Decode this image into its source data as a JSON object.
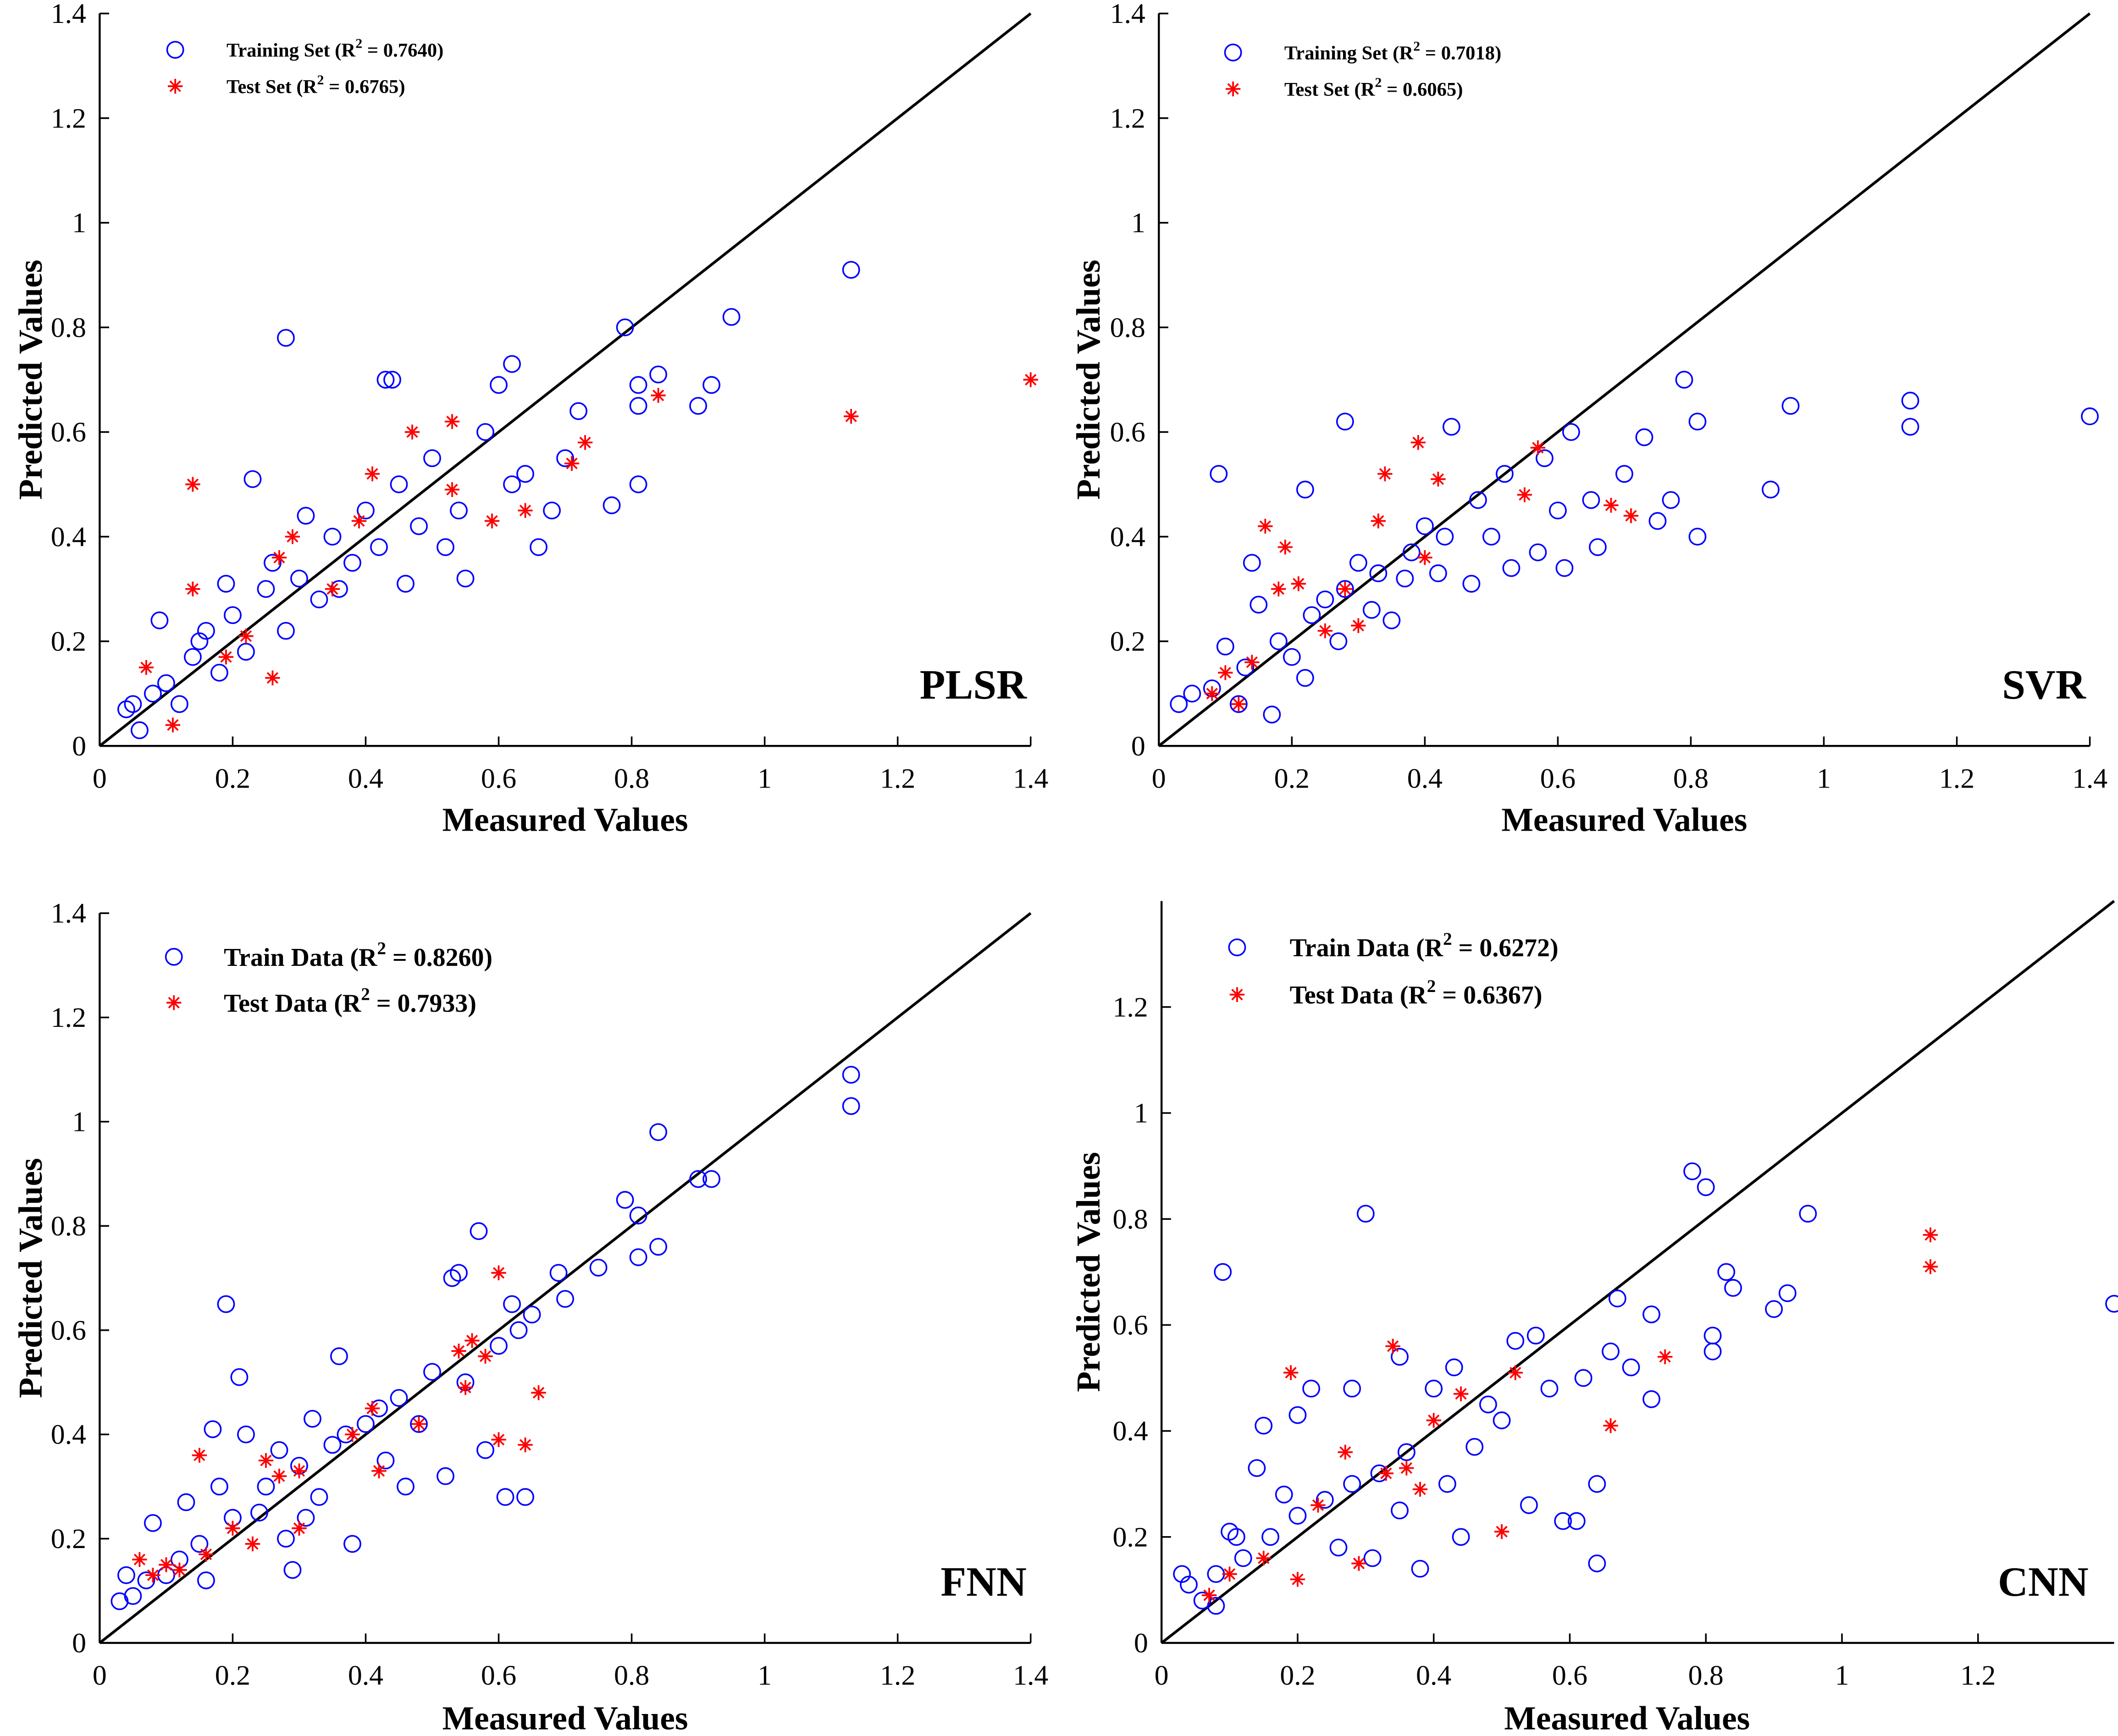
{
  "chart_data": [
    {
      "type": "scatter",
      "model": "PLSR",
      "xlabel": "Measured Values",
      "ylabel": "Predicted Values",
      "xlim": [
        0,
        1.4
      ],
      "ylim": [
        0,
        1.4
      ],
      "xticks": [
        "0",
        "0.2",
        "0.4",
        "0.6",
        "0.8",
        "1",
        "1.2",
        "1.4"
      ],
      "yticks": [
        "0",
        "0.2",
        "0.4",
        "0.6",
        "0.8",
        "1",
        "1.2",
        "1.4"
      ],
      "legend": {
        "placement": "top-left",
        "train": {
          "label": "Training Set (R",
          "sup": "2",
          "rest": " = 0.7640)"
        },
        "test": {
          "label": "Test Set (R",
          "sup": "2",
          "rest": " = 0.6765)"
        }
      },
      "reference_line": "y = x",
      "train": [
        [
          1.13,
          0.91
        ],
        [
          0.95,
          0.82
        ],
        [
          0.79,
          0.8
        ],
        [
          0.28,
          0.78
        ],
        [
          0.84,
          0.71
        ],
        [
          0.62,
          0.73
        ],
        [
          0.43,
          0.7
        ],
        [
          0.44,
          0.7
        ],
        [
          0.92,
          0.69
        ],
        [
          0.9,
          0.65
        ],
        [
          0.81,
          0.65
        ],
        [
          0.81,
          0.69
        ],
        [
          0.72,
          0.64
        ],
        [
          0.6,
          0.69
        ],
        [
          0.81,
          0.5
        ],
        [
          0.77,
          0.46
        ],
        [
          0.66,
          0.38
        ],
        [
          0.55,
          0.32
        ],
        [
          0.23,
          0.51
        ],
        [
          0.58,
          0.6
        ],
        [
          0.5,
          0.55
        ],
        [
          0.45,
          0.5
        ],
        [
          0.4,
          0.45
        ],
        [
          0.35,
          0.4
        ],
        [
          0.3,
          0.32
        ],
        [
          0.25,
          0.3
        ],
        [
          0.2,
          0.25
        ],
        [
          0.15,
          0.2
        ],
        [
          0.1,
          0.12
        ],
        [
          0.05,
          0.08
        ],
        [
          0.04,
          0.07
        ],
        [
          0.06,
          0.03
        ],
        [
          0.09,
          0.24
        ],
        [
          0.18,
          0.14
        ],
        [
          0.22,
          0.18
        ],
        [
          0.28,
          0.22
        ],
        [
          0.33,
          0.28
        ],
        [
          0.38,
          0.35
        ],
        [
          0.42,
          0.38
        ],
        [
          0.48,
          0.42
        ],
        [
          0.52,
          0.38
        ],
        [
          0.62,
          0.5
        ],
        [
          0.68,
          0.45
        ],
        [
          0.7,
          0.55
        ],
        [
          0.12,
          0.08
        ],
        [
          0.16,
          0.22
        ],
        [
          0.26,
          0.35
        ],
        [
          0.31,
          0.44
        ],
        [
          0.36,
          0.3
        ],
        [
          0.46,
          0.31
        ],
        [
          0.54,
          0.45
        ],
        [
          0.64,
          0.52
        ],
        [
          0.19,
          0.31
        ],
        [
          0.14,
          0.17
        ],
        [
          0.08,
          0.1
        ]
      ],
      "test": [
        [
          1.4,
          0.7
        ],
        [
          1.13,
          0.63
        ],
        [
          0.84,
          0.67
        ],
        [
          0.73,
          0.58
        ],
        [
          0.71,
          0.54
        ],
        [
          0.53,
          0.62
        ],
        [
          0.47,
          0.6
        ],
        [
          0.14,
          0.5
        ],
        [
          0.41,
          0.52
        ],
        [
          0.59,
          0.43
        ],
        [
          0.64,
          0.45
        ],
        [
          0.29,
          0.4
        ],
        [
          0.14,
          0.3
        ],
        [
          0.27,
          0.36
        ],
        [
          0.35,
          0.3
        ],
        [
          0.22,
          0.21
        ],
        [
          0.26,
          0.13
        ],
        [
          0.11,
          0.04
        ],
        [
          0.07,
          0.15
        ],
        [
          0.19,
          0.17
        ],
        [
          0.53,
          0.49
        ],
        [
          0.39,
          0.43
        ]
      ]
    },
    {
      "type": "scatter",
      "model": "SVR",
      "xlabel": "Measured Values",
      "ylabel": "Predicted Values",
      "xlim": [
        0,
        1.4
      ],
      "ylim": [
        0,
        1.4
      ],
      "xticks": [
        "0",
        "0.2",
        "0.4",
        "0.6",
        "0.8",
        "1",
        "1.2",
        "1.4"
      ],
      "yticks": [
        "0",
        "0.2",
        "0.4",
        "0.6",
        "0.8",
        "1",
        "1.2",
        "1.4"
      ],
      "legend": {
        "placement": "top-left",
        "train": {
          "label": "Training Set (R",
          "sup": "2",
          "rest": " = 0.7018)"
        },
        "test": {
          "label": "Test Set (R",
          "sup": "2",
          "rest": " = 0.6065)"
        }
      },
      "reference_line": "y = x",
      "train": [
        [
          1.4,
          0.63
        ],
        [
          1.13,
          0.66
        ],
        [
          1.13,
          0.61
        ],
        [
          0.95,
          0.65
        ],
        [
          0.92,
          0.49
        ],
        [
          0.81,
          0.62
        ],
        [
          0.81,
          0.4
        ],
        [
          0.79,
          0.7
        ],
        [
          0.73,
          0.59
        ],
        [
          0.28,
          0.62
        ],
        [
          0.44,
          0.61
        ],
        [
          0.09,
          0.52
        ],
        [
          0.22,
          0.49
        ],
        [
          0.62,
          0.6
        ],
        [
          0.58,
          0.55
        ],
        [
          0.52,
          0.52
        ],
        [
          0.48,
          0.47
        ],
        [
          0.43,
          0.4
        ],
        [
          0.38,
          0.37
        ],
        [
          0.33,
          0.33
        ],
        [
          0.28,
          0.3
        ],
        [
          0.23,
          0.25
        ],
        [
          0.18,
          0.2
        ],
        [
          0.13,
          0.15
        ],
        [
          0.08,
          0.11
        ],
        [
          0.03,
          0.08
        ],
        [
          0.05,
          0.1
        ],
        [
          0.12,
          0.08
        ],
        [
          0.17,
          0.06
        ],
        [
          0.22,
          0.13
        ],
        [
          0.27,
          0.2
        ],
        [
          0.32,
          0.26
        ],
        [
          0.37,
          0.32
        ],
        [
          0.42,
          0.33
        ],
        [
          0.47,
          0.31
        ],
        [
          0.53,
          0.34
        ],
        [
          0.57,
          0.37
        ],
        [
          0.61,
          0.34
        ],
        [
          0.66,
          0.38
        ],
        [
          0.7,
          0.52
        ],
        [
          0.75,
          0.43
        ],
        [
          0.77,
          0.47
        ],
        [
          0.65,
          0.47
        ],
        [
          0.6,
          0.45
        ],
        [
          0.5,
          0.4
        ],
        [
          0.4,
          0.42
        ],
        [
          0.35,
          0.24
        ],
        [
          0.3,
          0.35
        ],
        [
          0.25,
          0.28
        ],
        [
          0.2,
          0.17
        ],
        [
          0.15,
          0.27
        ],
        [
          0.1,
          0.19
        ],
        [
          0.14,
          0.35
        ]
      ],
      "test": [
        [
          0.57,
          0.57
        ],
        [
          0.39,
          0.58
        ],
        [
          0.42,
          0.51
        ],
        [
          0.34,
          0.52
        ],
        [
          0.16,
          0.42
        ],
        [
          0.19,
          0.38
        ],
        [
          0.71,
          0.44
        ],
        [
          0.68,
          0.46
        ],
        [
          0.55,
          0.48
        ],
        [
          0.33,
          0.43
        ],
        [
          0.4,
          0.36
        ],
        [
          0.28,
          0.3
        ],
        [
          0.25,
          0.22
        ],
        [
          0.3,
          0.23
        ],
        [
          0.21,
          0.31
        ],
        [
          0.12,
          0.08
        ],
        [
          0.1,
          0.14
        ],
        [
          0.08,
          0.1
        ],
        [
          0.14,
          0.16
        ],
        [
          0.18,
          0.3
        ]
      ]
    },
    {
      "type": "scatter",
      "model": "FNN",
      "xlabel": "Measured Values",
      "ylabel": "Predicted Values",
      "xlim": [
        0,
        1.4
      ],
      "ylim": [
        0,
        1.4
      ],
      "xticks": [
        "0",
        "0.2",
        "0.4",
        "0.6",
        "0.8",
        "1",
        "1.2",
        "1.4"
      ],
      "yticks": [
        "0",
        "0.2",
        "0.4",
        "0.6",
        "0.8",
        "1",
        "1.2",
        "1.4"
      ],
      "legend": {
        "placement": "top-left",
        "train": {
          "label": "Train Data (R",
          "sup": "2",
          "rest": " = 0.8260)"
        },
        "test": {
          "label": "Test Data (R",
          "sup": "2",
          "rest": " = 0.7933)"
        }
      },
      "reference_line": "y = x",
      "train": [
        [
          1.13,
          1.09
        ],
        [
          1.13,
          1.03
        ],
        [
          0.84,
          0.98
        ],
        [
          0.92,
          0.89
        ],
        [
          0.9,
          0.89
        ],
        [
          0.79,
          0.85
        ],
        [
          0.81,
          0.82
        ],
        [
          0.81,
          0.74
        ],
        [
          0.84,
          0.76
        ],
        [
          0.75,
          0.72
        ],
        [
          0.69,
          0.71
        ],
        [
          0.57,
          0.79
        ],
        [
          0.54,
          0.71
        ],
        [
          0.53,
          0.7
        ],
        [
          0.19,
          0.65
        ],
        [
          0.21,
          0.51
        ],
        [
          0.62,
          0.65
        ],
        [
          0.65,
          0.63
        ],
        [
          0.6,
          0.57
        ],
        [
          0.58,
          0.37
        ],
        [
          0.61,
          0.28
        ],
        [
          0.64,
          0.28
        ],
        [
          0.52,
          0.32
        ],
        [
          0.46,
          0.3
        ],
        [
          0.38,
          0.19
        ],
        [
          0.29,
          0.14
        ],
        [
          0.36,
          0.55
        ],
        [
          0.17,
          0.41
        ],
        [
          0.22,
          0.4
        ],
        [
          0.5,
          0.52
        ],
        [
          0.45,
          0.47
        ],
        [
          0.4,
          0.42
        ],
        [
          0.35,
          0.38
        ],
        [
          0.3,
          0.34
        ],
        [
          0.25,
          0.3
        ],
        [
          0.2,
          0.24
        ],
        [
          0.15,
          0.19
        ],
        [
          0.1,
          0.13
        ],
        [
          0.05,
          0.09
        ],
        [
          0.03,
          0.08
        ],
        [
          0.04,
          0.13
        ],
        [
          0.08,
          0.23
        ],
        [
          0.13,
          0.27
        ],
        [
          0.18,
          0.3
        ],
        [
          0.24,
          0.25
        ],
        [
          0.28,
          0.2
        ],
        [
          0.33,
          0.28
        ],
        [
          0.43,
          0.35
        ],
        [
          0.48,
          0.42
        ],
        [
          0.55,
          0.5
        ],
        [
          0.63,
          0.6
        ],
        [
          0.7,
          0.66
        ],
        [
          0.32,
          0.43
        ],
        [
          0.27,
          0.37
        ],
        [
          0.12,
          0.16
        ],
        [
          0.16,
          0.12
        ],
        [
          0.42,
          0.45
        ],
        [
          0.37,
          0.4
        ],
        [
          0.31,
          0.24
        ],
        [
          0.07,
          0.12
        ]
      ],
      "test": [
        [
          0.6,
          0.71
        ],
        [
          0.56,
          0.58
        ],
        [
          0.54,
          0.56
        ],
        [
          0.58,
          0.55
        ],
        [
          0.55,
          0.49
        ],
        [
          0.66,
          0.48
        ],
        [
          0.64,
          0.38
        ],
        [
          0.6,
          0.39
        ],
        [
          0.48,
          0.42
        ],
        [
          0.42,
          0.33
        ],
        [
          0.41,
          0.45
        ],
        [
          0.38,
          0.4
        ],
        [
          0.3,
          0.33
        ],
        [
          0.27,
          0.32
        ],
        [
          0.25,
          0.35
        ],
        [
          0.15,
          0.36
        ],
        [
          0.3,
          0.22
        ],
        [
          0.23,
          0.19
        ],
        [
          0.2,
          0.22
        ],
        [
          0.16,
          0.17
        ],
        [
          0.12,
          0.14
        ],
        [
          0.1,
          0.15
        ],
        [
          0.06,
          0.16
        ],
        [
          0.08,
          0.13
        ]
      ]
    },
    {
      "type": "scatter",
      "model": "CNN",
      "xlabel": "Measured Values",
      "ylabel": "Predicted Values",
      "xlim": [
        0,
        1.4
      ],
      "ylim": [
        0,
        1.4
      ],
      "xticks": [
        "0",
        "0.2",
        "0.4",
        "0.6",
        "0.8",
        "1",
        "1.2"
      ],
      "yticks": [
        "0",
        "0.2",
        "0.4",
        "0.6",
        "0.8",
        "1",
        "1.2"
      ],
      "legend": {
        "placement": "top-left",
        "train": {
          "label": "Train Data (R",
          "sup": "2",
          "rest": " = 0.6272)"
        },
        "test": {
          "label": "Test Data (R",
          "sup": "2",
          "rest": " = 0.6367)"
        }
      },
      "reference_line": "y = x",
      "train": [
        [
          1.4,
          0.64
        ],
        [
          0.95,
          0.81
        ],
        [
          0.78,
          0.89
        ],
        [
          0.8,
          0.86
        ],
        [
          0.92,
          0.66
        ],
        [
          0.9,
          0.63
        ],
        [
          0.83,
          0.7
        ],
        [
          0.84,
          0.67
        ],
        [
          0.81,
          0.58
        ],
        [
          0.81,
          0.55
        ],
        [
          0.3,
          0.81
        ],
        [
          0.09,
          0.7
        ],
        [
          0.67,
          0.65
        ],
        [
          0.72,
          0.62
        ],
        [
          0.72,
          0.46
        ],
        [
          0.66,
          0.55
        ],
        [
          0.64,
          0.15
        ],
        [
          0.64,
          0.3
        ],
        [
          0.61,
          0.23
        ],
        [
          0.59,
          0.23
        ],
        [
          0.54,
          0.26
        ],
        [
          0.38,
          0.14
        ],
        [
          0.35,
          0.54
        ],
        [
          0.2,
          0.43
        ],
        [
          0.22,
          0.48
        ],
        [
          0.28,
          0.48
        ],
        [
          0.55,
          0.58
        ],
        [
          0.52,
          0.57
        ],
        [
          0.48,
          0.45
        ],
        [
          0.43,
          0.52
        ],
        [
          0.4,
          0.48
        ],
        [
          0.36,
          0.36
        ],
        [
          0.32,
          0.32
        ],
        [
          0.28,
          0.3
        ],
        [
          0.24,
          0.27
        ],
        [
          0.2,
          0.24
        ],
        [
          0.16,
          0.2
        ],
        [
          0.12,
          0.16
        ],
        [
          0.08,
          0.13
        ],
        [
          0.04,
          0.11
        ],
        [
          0.03,
          0.13
        ],
        [
          0.06,
          0.08
        ],
        [
          0.1,
          0.21
        ],
        [
          0.14,
          0.33
        ],
        [
          0.18,
          0.28
        ],
        [
          0.26,
          0.18
        ],
        [
          0.31,
          0.16
        ],
        [
          0.42,
          0.3
        ],
        [
          0.46,
          0.37
        ],
        [
          0.5,
          0.42
        ],
        [
          0.57,
          0.48
        ],
        [
          0.62,
          0.5
        ],
        [
          0.69,
          0.52
        ],
        [
          0.35,
          0.25
        ],
        [
          0.44,
          0.2
        ],
        [
          0.15,
          0.41
        ],
        [
          0.11,
          0.2
        ],
        [
          0.08,
          0.07
        ]
      ],
      "test": [
        [
          1.13,
          0.77
        ],
        [
          1.13,
          0.71
        ],
        [
          0.74,
          0.54
        ],
        [
          0.66,
          0.41
        ],
        [
          0.5,
          0.21
        ],
        [
          0.52,
          0.51
        ],
        [
          0.44,
          0.47
        ],
        [
          0.34,
          0.56
        ],
        [
          0.19,
          0.51
        ],
        [
          0.27,
          0.36
        ],
        [
          0.33,
          0.32
        ],
        [
          0.38,
          0.29
        ],
        [
          0.4,
          0.42
        ],
        [
          0.29,
          0.15
        ],
        [
          0.2,
          0.12
        ],
        [
          0.23,
          0.26
        ],
        [
          0.15,
          0.16
        ],
        [
          0.1,
          0.13
        ],
        [
          0.07,
          0.09
        ],
        [
          0.36,
          0.33
        ]
      ]
    }
  ],
  "colors": {
    "train": "#0000ff",
    "test": "#ff0000",
    "line": "#000000"
  }
}
